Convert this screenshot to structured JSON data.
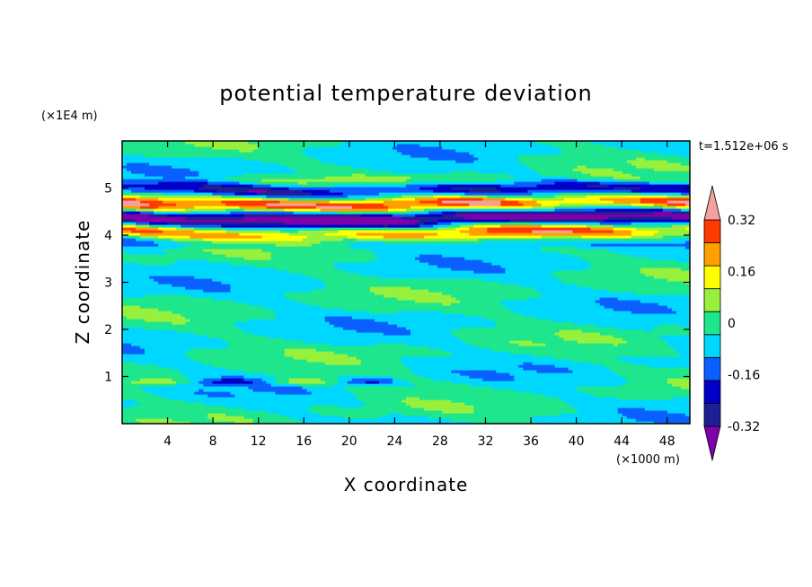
{
  "chart_data": {
    "type": "heatmap",
    "title": "potential temperature deviation",
    "xlabel": "X coordinate",
    "ylabel": "Z coordinate",
    "x_unit": "(×1000 m)",
    "y_unit": "(×1E4 m)",
    "time_label": "t=1.512e+06 s",
    "xlim": [
      0,
      50
    ],
    "ylim": [
      0,
      6
    ],
    "x_ticks": [
      4,
      8,
      12,
      16,
      20,
      24,
      28,
      32,
      36,
      40,
      44,
      48
    ],
    "y_ticks": [
      1,
      2,
      3,
      4,
      5
    ],
    "x_tick_labels": [
      "4",
      "8",
      "12",
      "16",
      "20",
      "24",
      "28",
      "32",
      "36",
      "40",
      "44",
      "48"
    ],
    "y_tick_labels": [
      "1",
      "2",
      "3",
      "4",
      "5"
    ],
    "colorbar": {
      "levels": [
        -0.4,
        -0.32,
        -0.24,
        -0.16,
        -0.08,
        0,
        0.08,
        0.16,
        0.24,
        0.32,
        0.4
      ],
      "colors": [
        "#7d00a8",
        "#1e1e96",
        "#0000c8",
        "#0a5fff",
        "#00d7ff",
        "#1ee68c",
        "#96f03c",
        "#ffff00",
        "#ffa000",
        "#ff3c00",
        "#f5a0a0"
      ],
      "tick_labels": [
        "0.32",
        "0.16",
        "0",
        "-0.16",
        "-0.32"
      ],
      "tick_values": [
        0.32,
        0.16,
        0,
        -0.16,
        -0.32
      ]
    },
    "structure": {
      "background_classes": [
        "0 to 0.08",
        "-0.08 to 0"
      ],
      "active_layer_z": [
        3.7,
        5.3
      ],
      "weak_feature_z": 0.9
    }
  }
}
